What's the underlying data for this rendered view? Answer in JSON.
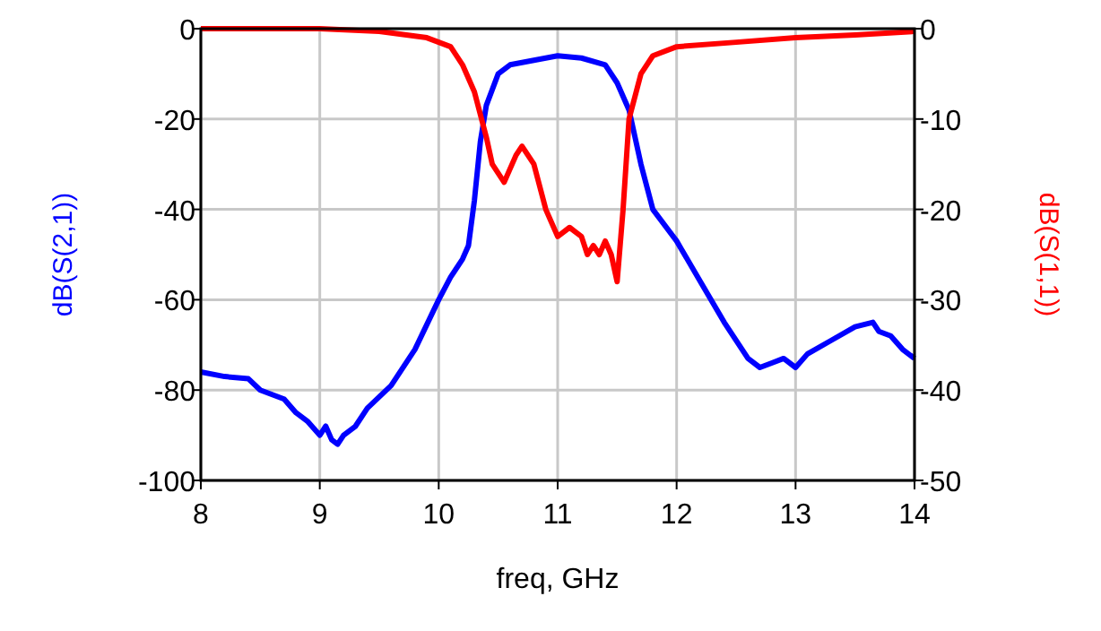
{
  "chart_data": {
    "type": "line",
    "xlabel": "freq, GHz",
    "ylabel": "dB(S(2,1))",
    "y2label": "dB(S(1,1))",
    "xlim": [
      8,
      14
    ],
    "xticks": [
      8,
      9,
      10,
      11,
      12,
      13,
      14
    ],
    "ylim": [
      -100,
      0
    ],
    "yticks": [
      -100,
      -80,
      -60,
      -40,
      -20,
      0
    ],
    "y2lim": [
      -50,
      0
    ],
    "y2ticks": [
      -50,
      -40,
      -30,
      -20,
      -10,
      0
    ],
    "grid": true,
    "line_style": "solid",
    "marker": "none",
    "series": [
      {
        "color": "#0000ff",
        "x": [
          8.0,
          8.2,
          8.4,
          8.5,
          8.7,
          8.8,
          8.9,
          9.0,
          9.05,
          9.1,
          9.15,
          9.2,
          9.3,
          9.4,
          9.6,
          9.8,
          10.0,
          10.1,
          10.2,
          10.25,
          10.3,
          10.35,
          10.4,
          10.5,
          10.6,
          10.8,
          11.0,
          11.2,
          11.4,
          11.5,
          11.6,
          11.7,
          11.8,
          12.0,
          12.2,
          12.4,
          12.6,
          12.7,
          12.8,
          12.9,
          13.0,
          13.1,
          13.3,
          13.5,
          13.65,
          13.7,
          13.8,
          13.9,
          14.0
        ],
        "values": [
          -76,
          -77,
          -77.5,
          -80,
          -82,
          -85,
          -87,
          -90,
          -88,
          -91,
          -92,
          -90,
          -88,
          -84,
          -79,
          -71,
          -60,
          -55,
          -51,
          -48,
          -38,
          -25,
          -17,
          -10,
          -8,
          -7,
          -6,
          -6.5,
          -8,
          -12,
          -18,
          -30,
          -40,
          -47,
          -56,
          -65,
          -73,
          -75,
          -74,
          -73,
          -75,
          -72,
          -69,
          -66,
          -65,
          -67,
          -68,
          -71,
          -73
        ]
      },
      {
        "color": "#ff0000",
        "axis": "y2",
        "x": [
          8,
          9,
          9.5,
          9.9,
          10.1,
          10.2,
          10.3,
          10.4,
          10.45,
          10.55,
          10.65,
          10.7,
          10.8,
          10.9,
          11.0,
          11.1,
          11.2,
          11.25,
          11.3,
          11.35,
          11.4,
          11.45,
          11.5,
          11.55,
          11.6,
          11.7,
          11.8,
          12.0,
          12.5,
          13.0,
          13.5,
          14.0
        ],
        "values": [
          0,
          0,
          -0.3,
          -1,
          -2,
          -4,
          -7,
          -12,
          -15,
          -17,
          -14,
          -13,
          -15,
          -20,
          -23,
          -22,
          -23,
          -25,
          -24,
          -25,
          -23.5,
          -25,
          -28,
          -20,
          -10,
          -5,
          -3,
          -2,
          -1.5,
          -1,
          -0.7,
          -0.3
        ]
      }
    ]
  }
}
